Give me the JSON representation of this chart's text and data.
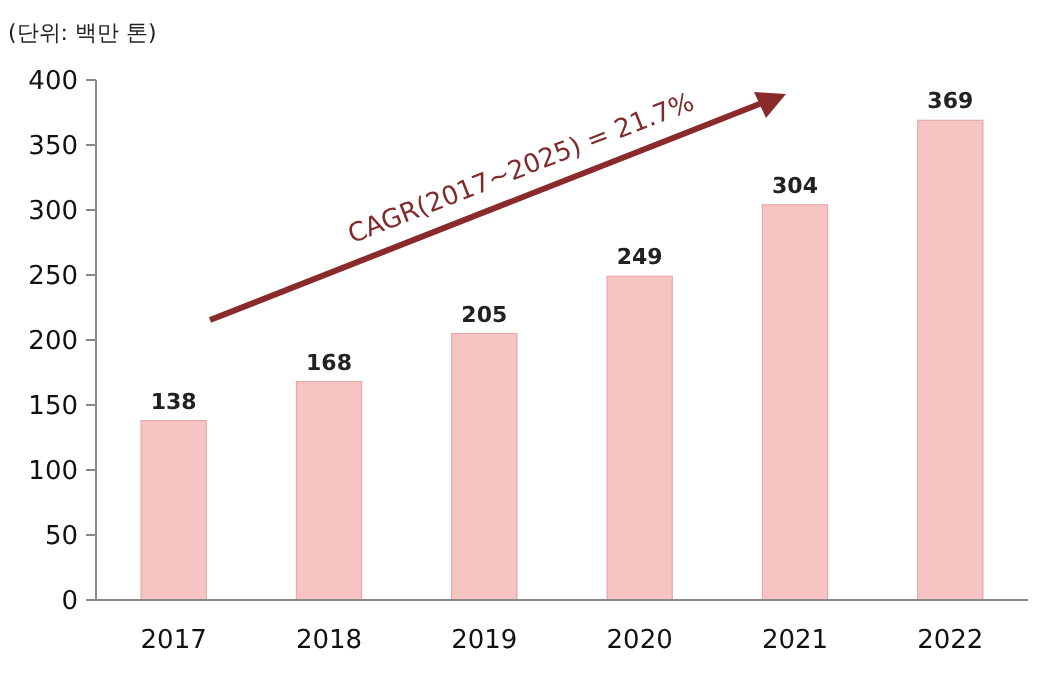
{
  "chart_data": {
    "type": "bar",
    "ylabel": "(단위: 백만 톤)",
    "categories": [
      "2017",
      "2018",
      "2019",
      "2020",
      "2021",
      "2022"
    ],
    "values": [
      138,
      168,
      205,
      249,
      304,
      369
    ],
    "color": "#f7c4c4",
    "ylim": [
      0,
      400
    ],
    "yticks": [
      0,
      50,
      100,
      150,
      200,
      250,
      300,
      350,
      400
    ],
    "grid": false,
    "data_labels": true,
    "annotations": [
      "CAGR(2017~2025) = 21.7%"
    ]
  }
}
